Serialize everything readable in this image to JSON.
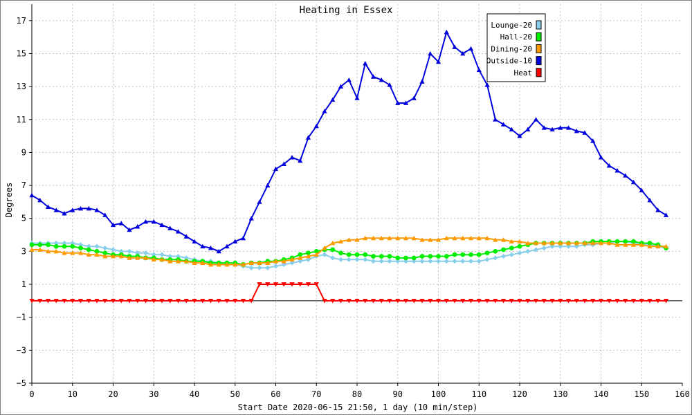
{
  "chart_data": {
    "type": "line",
    "title": "Heating in Essex",
    "xlabel": "Start Date 2020-06-15 21:50, 1 day (10 min/step)",
    "ylabel": "Degrees",
    "xlim": [
      0,
      160
    ],
    "ylim": [
      -5,
      18
    ],
    "x_ticks": [
      0,
      10,
      20,
      30,
      40,
      50,
      60,
      70,
      80,
      90,
      100,
      110,
      120,
      130,
      140,
      150,
      160
    ],
    "y_ticks": [
      -5,
      -3,
      -1,
      1,
      3,
      5,
      7,
      9,
      11,
      13,
      15,
      17
    ],
    "grid": true,
    "legend_position": "top-right",
    "x": [
      0,
      2,
      4,
      6,
      8,
      10,
      12,
      14,
      16,
      18,
      20,
      22,
      24,
      26,
      28,
      30,
      32,
      34,
      36,
      38,
      40,
      42,
      44,
      46,
      48,
      50,
      52,
      54,
      56,
      58,
      60,
      62,
      64,
      66,
      68,
      70,
      72,
      74,
      76,
      78,
      80,
      82,
      84,
      86,
      88,
      90,
      92,
      94,
      96,
      98,
      100,
      102,
      104,
      106,
      108,
      110,
      112,
      114,
      116,
      118,
      120,
      122,
      124,
      126,
      128,
      130,
      132,
      134,
      136,
      138,
      140,
      142,
      144,
      146,
      148,
      150,
      152,
      154,
      156
    ],
    "series": [
      {
        "name": "Lounge-20",
        "color": "#87ceeb",
        "marker": "diamond",
        "values": [
          3.5,
          3.5,
          3.5,
          3.5,
          3.5,
          3.5,
          3.4,
          3.3,
          3.3,
          3.2,
          3.1,
          3.0,
          3.0,
          2.9,
          2.9,
          2.8,
          2.8,
          2.7,
          2.7,
          2.6,
          2.5,
          2.4,
          2.4,
          2.3,
          2.2,
          2.2,
          2.1,
          2.0,
          2.0,
          2.0,
          2.1,
          2.2,
          2.3,
          2.4,
          2.5,
          2.7,
          2.8,
          2.6,
          2.5,
          2.5,
          2.5,
          2.5,
          2.4,
          2.4,
          2.4,
          2.4,
          2.4,
          2.4,
          2.4,
          2.4,
          2.4,
          2.4,
          2.4,
          2.4,
          2.4,
          2.4,
          2.5,
          2.6,
          2.7,
          2.8,
          2.9,
          3.0,
          3.1,
          3.2,
          3.3,
          3.3,
          3.3,
          3.3,
          3.4,
          3.4,
          3.5,
          3.5,
          3.6,
          3.6,
          3.5,
          3.5,
          3.4,
          3.3,
          3.2
        ]
      },
      {
        "name": "Hall-20",
        "color": "#00ee00",
        "marker": "circle",
        "values": [
          3.4,
          3.4,
          3.4,
          3.3,
          3.3,
          3.3,
          3.2,
          3.1,
          3.0,
          2.9,
          2.8,
          2.8,
          2.7,
          2.7,
          2.6,
          2.6,
          2.5,
          2.5,
          2.5,
          2.4,
          2.4,
          2.4,
          2.3,
          2.3,
          2.3,
          2.3,
          2.2,
          2.3,
          2.3,
          2.4,
          2.4,
          2.5,
          2.6,
          2.8,
          2.9,
          3.0,
          3.1,
          3.1,
          2.9,
          2.8,
          2.8,
          2.8,
          2.7,
          2.7,
          2.7,
          2.6,
          2.6,
          2.6,
          2.7,
          2.7,
          2.7,
          2.7,
          2.8,
          2.8,
          2.8,
          2.8,
          2.9,
          3.0,
          3.1,
          3.2,
          3.3,
          3.4,
          3.5,
          3.5,
          3.5,
          3.5,
          3.5,
          3.5,
          3.5,
          3.6,
          3.6,
          3.6,
          3.6,
          3.6,
          3.6,
          3.5,
          3.5,
          3.4,
          3.2
        ]
      },
      {
        "name": "Dining-20",
        "color": "#ff9900",
        "marker": "triangle-up",
        "values": [
          3.1,
          3.1,
          3.0,
          3.0,
          2.9,
          2.9,
          2.9,
          2.8,
          2.8,
          2.7,
          2.7,
          2.7,
          2.6,
          2.6,
          2.6,
          2.5,
          2.5,
          2.4,
          2.4,
          2.4,
          2.3,
          2.3,
          2.2,
          2.2,
          2.2,
          2.2,
          2.2,
          2.3,
          2.3,
          2.3,
          2.4,
          2.4,
          2.5,
          2.6,
          2.7,
          2.8,
          3.2,
          3.5,
          3.6,
          3.7,
          3.7,
          3.8,
          3.8,
          3.8,
          3.8,
          3.8,
          3.8,
          3.8,
          3.7,
          3.7,
          3.7,
          3.8,
          3.8,
          3.8,
          3.8,
          3.8,
          3.8,
          3.7,
          3.7,
          3.6,
          3.6,
          3.5,
          3.5,
          3.5,
          3.5,
          3.5,
          3.5,
          3.5,
          3.5,
          3.5,
          3.5,
          3.5,
          3.4,
          3.4,
          3.4,
          3.4,
          3.3,
          3.3,
          3.3
        ]
      },
      {
        "name": "Outside-10",
        "color": "#0000dd",
        "marker": "triangle-up",
        "values": [
          6.4,
          6.1,
          5.7,
          5.5,
          5.3,
          5.5,
          5.6,
          5.6,
          5.5,
          5.2,
          4.6,
          4.7,
          4.3,
          4.5,
          4.8,
          4.8,
          4.6,
          4.4,
          4.2,
          3.9,
          3.6,
          3.3,
          3.2,
          3.0,
          3.3,
          3.6,
          3.8,
          5.0,
          6.0,
          7.0,
          8.0,
          8.3,
          8.7,
          8.5,
          9.9,
          10.6,
          11.5,
          12.2,
          13.0,
          13.4,
          12.3,
          14.4,
          13.6,
          13.4,
          13.1,
          12.0,
          12.0,
          12.3,
          13.3,
          15.0,
          14.5,
          16.3,
          15.4,
          15.0,
          15.3,
          14.0,
          13.1,
          11.0,
          10.7,
          10.4,
          10.0,
          10.4,
          11.0,
          10.5,
          10.4,
          10.5,
          10.5,
          10.3,
          10.2,
          9.7,
          8.7,
          8.2,
          7.9,
          7.6,
          7.2,
          6.7,
          6.1,
          5.5,
          5.2
        ]
      },
      {
        "name": "Heat",
        "color": "#ff0000",
        "marker": "triangle-down",
        "values": [
          0,
          0,
          0,
          0,
          0,
          0,
          0,
          0,
          0,
          0,
          0,
          0,
          0,
          0,
          0,
          0,
          0,
          0,
          0,
          0,
          0,
          0,
          0,
          0,
          0,
          0,
          0,
          0,
          1,
          1,
          1,
          1,
          1,
          1,
          1,
          1,
          0,
          0,
          0,
          0,
          0,
          0,
          0,
          0,
          0,
          0,
          0,
          0,
          0,
          0,
          0,
          0,
          0,
          0,
          0,
          0,
          0,
          0,
          0,
          0,
          0,
          0,
          0,
          0,
          0,
          0,
          0,
          0,
          0,
          0,
          0,
          0,
          0,
          0,
          0,
          0,
          0,
          0,
          0
        ]
      }
    ]
  }
}
